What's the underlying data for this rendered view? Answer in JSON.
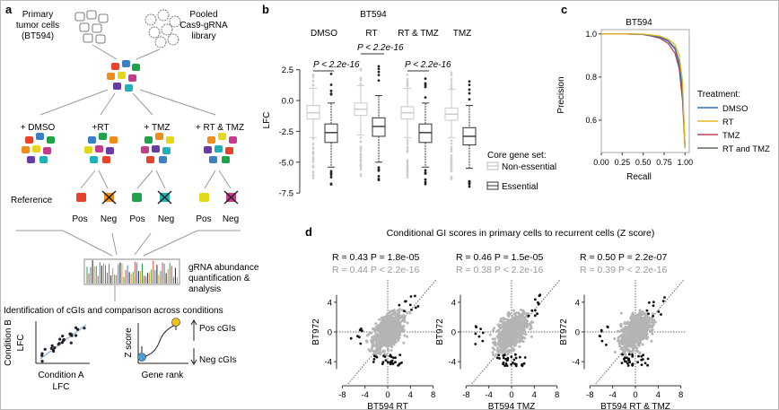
{
  "panel_a": {
    "letter": "a",
    "primary": [
      "Primary",
      "tumor cells",
      "(BT594)"
    ],
    "pooled": [
      "Pooled",
      "Cas9-gRNA",
      "library"
    ],
    "conditions": [
      "+ DMSO",
      "+RT",
      "+ TMZ",
      "+ RT & TMZ"
    ],
    "reference": "Reference",
    "pos": "Pos",
    "neg": "Neg",
    "abundance": [
      "gRNA abundance",
      "quantification &",
      "analysis"
    ],
    "identification": "Identification of cGIs and comparison across conditions",
    "cond_b": [
      "Condition B",
      "LFC"
    ],
    "cond_a": [
      "Condition A",
      "LFC"
    ],
    "zscore": "Z score",
    "gene_rank": "Gene rank",
    "pos_cgis": "Pos cGIs",
    "neg_cgis": "Neg cGIs"
  },
  "panel_b": {
    "letter": "b",
    "title": "BT594",
    "groups": [
      "DMSO",
      "RT",
      "RT & TMZ",
      "TMZ"
    ],
    "pvalue": "P < 2.2e-16",
    "ylabel": "LFC",
    "yticks": [
      "2.5",
      "0.0",
      "-2.5",
      "-5.0",
      "-7.5"
    ],
    "legend_title": "Core gene set:",
    "legend_items": [
      "Non-essential",
      "Essential"
    ]
  },
  "panel_c": {
    "letter": "c",
    "title": "BT594",
    "xlabel": "Recall",
    "ylabel": "Precision",
    "xticks": [
      "0.00",
      "0.25",
      "0.50",
      "0.75",
      "1.00"
    ],
    "yticks": [
      "1.0",
      "0.8",
      "0.6"
    ],
    "legend_title": "Treatment:",
    "legend_items": [
      "DMSO",
      "RT",
      "TMZ",
      "RT and TMZ"
    ],
    "colors": [
      "#2f6fb5",
      "#e8b51e",
      "#c2415a",
      "#5b6f5b"
    ]
  },
  "panel_d": {
    "letter": "d",
    "title": "Conditional GI scores in primary cells to recurrent cells (Z score)",
    "ylabel": "BT972",
    "yticks": [
      "4",
      "0",
      "-4"
    ],
    "xticks": [
      "-8",
      "-4",
      "0",
      "4",
      "8"
    ],
    "plots": [
      {
        "stat1": "R = 0.43  P = 1.8e-05",
        "stat2": "R = 0.44  P < 2.2e-16",
        "xlabel": "BT594 RT"
      },
      {
        "stat1": "R = 0.46  P = 1.5e-05",
        "stat2": "R = 0.38  P < 2.2e-16",
        "xlabel": "BT594 TMZ"
      },
      {
        "stat1": "R = 0.50  P = 2.2e-07",
        "stat2": "R = 0.39  P < 2.2e-16",
        "xlabel": "BT594 RT & TMZ"
      }
    ]
  },
  "chart_data": [
    {
      "type": "box",
      "title": "BT594",
      "ylabel": "LFC",
      "ylim": [
        -8,
        3.5
      ],
      "categories": [
        "DMSO",
        "RT",
        "RT & TMZ",
        "TMZ"
      ],
      "series": [
        {
          "name": "Non-essential",
          "boxes": [
            {
              "q1": -1.5,
              "median": -1.0,
              "q3": -0.4,
              "whislo": -3.0,
              "whishi": 1.0
            },
            {
              "q1": -1.2,
              "median": -0.7,
              "q3": -0.2,
              "whislo": -2.8,
              "whishi": 1.2
            },
            {
              "q1": -1.5,
              "median": -1.0,
              "q3": -0.5,
              "whislo": -3.0,
              "whishi": 1.0
            },
            {
              "q1": -1.6,
              "median": -1.1,
              "q3": -0.6,
              "whislo": -3.0,
              "whishi": 0.9
            }
          ]
        },
        {
          "name": "Essential",
          "boxes": [
            {
              "q1": -3.4,
              "median": -2.6,
              "q3": -1.9,
              "whislo": -5.4,
              "whishi": -0.2
            },
            {
              "q1": -2.9,
              "median": -2.1,
              "q3": -1.4,
              "whislo": -5.0,
              "whishi": 0.4
            },
            {
              "q1": -3.4,
              "median": -2.6,
              "q3": -1.9,
              "whislo": -5.4,
              "whishi": -0.2
            },
            {
              "q1": -3.6,
              "median": -2.9,
              "q3": -2.2,
              "whislo": -5.5,
              "whishi": -0.4
            }
          ]
        }
      ]
    },
    {
      "type": "line",
      "title": "BT594",
      "xlabel": "Recall",
      "ylabel": "Precision",
      "xlim": [
        0,
        1.05
      ],
      "ylim": [
        0.45,
        1.02
      ],
      "series": [
        {
          "name": "DMSO",
          "x": [
            0,
            0.3,
            0.5,
            0.6,
            0.7,
            0.8,
            0.88,
            0.93,
            0.97,
            1.0
          ],
          "y": [
            1.0,
            1.0,
            0.998,
            0.992,
            0.985,
            0.965,
            0.93,
            0.86,
            0.72,
            0.47
          ]
        },
        {
          "name": "RT",
          "x": [
            0,
            0.3,
            0.5,
            0.6,
            0.7,
            0.8,
            0.88,
            0.93,
            0.97,
            1.0
          ],
          "y": [
            1.0,
            1.0,
            0.999,
            0.995,
            0.99,
            0.975,
            0.95,
            0.9,
            0.78,
            0.47
          ]
        },
        {
          "name": "TMZ",
          "x": [
            0,
            0.3,
            0.5,
            0.6,
            0.7,
            0.8,
            0.88,
            0.93,
            0.97,
            1.0
          ],
          "y": [
            1.0,
            1.0,
            0.997,
            0.99,
            0.98,
            0.955,
            0.91,
            0.84,
            0.69,
            0.47
          ]
        },
        {
          "name": "RT and TMZ",
          "x": [
            0,
            0.3,
            0.5,
            0.6,
            0.7,
            0.8,
            0.88,
            0.93,
            0.97,
            1.0
          ],
          "y": [
            1.0,
            1.0,
            0.998,
            0.993,
            0.987,
            0.968,
            0.935,
            0.87,
            0.74,
            0.47
          ]
        }
      ]
    },
    {
      "type": "scatter",
      "xlabel": "BT594 RT",
      "ylabel": "BT972",
      "xlim": [
        -9,
        9
      ],
      "ylim": [
        -7,
        7
      ],
      "R": 0.43
    },
    {
      "type": "scatter",
      "xlabel": "BT594 TMZ",
      "ylabel": "BT972",
      "xlim": [
        -9,
        9
      ],
      "ylim": [
        -7,
        7
      ],
      "R": 0.46
    },
    {
      "type": "scatter",
      "xlabel": "BT594 RT & TMZ",
      "ylabel": "BT972",
      "xlim": [
        -9,
        9
      ],
      "ylim": [
        -7,
        7
      ],
      "R": 0.5
    }
  ]
}
